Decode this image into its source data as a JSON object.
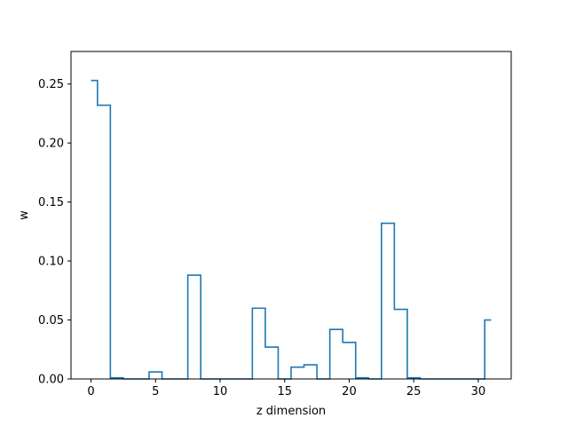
{
  "chart_data": {
    "type": "line",
    "drawstyle": "steps-mid",
    "title": "",
    "xlabel": "z dimension",
    "ylabel": "w",
    "xlim": [
      -1.55,
      32.55
    ],
    "ylim": [
      0,
      0.2776
    ],
    "x_ticks": [
      0,
      5,
      10,
      15,
      20,
      25,
      30
    ],
    "y_ticks": [
      0.0,
      0.05,
      0.1,
      0.15,
      0.2,
      0.25
    ],
    "y_tick_labels": [
      "0.00",
      "0.05",
      "0.10",
      "0.15",
      "0.20",
      "0.25"
    ],
    "grid": false,
    "legend": "none",
    "color": "#1f77b4",
    "series": [
      {
        "x": [
          0,
          1,
          2,
          3,
          4,
          5,
          6,
          7,
          8,
          9,
          10,
          11,
          12,
          13,
          14,
          15,
          16,
          17,
          18,
          19,
          20,
          21,
          22,
          23,
          24,
          25,
          26,
          27,
          28,
          29,
          30,
          31
        ],
        "values": [
          0.253,
          0.232,
          0.001,
          0.0,
          0.0,
          0.006,
          0.0,
          0.0,
          0.088,
          0.0,
          0.0,
          0.0,
          0.0,
          0.06,
          0.027,
          0.0,
          0.01,
          0.012,
          0.0,
          0.042,
          0.031,
          0.001,
          0.0,
          0.132,
          0.059,
          0.001,
          0.0,
          0.0,
          0.0,
          0.0,
          0.0,
          0.05
        ]
      }
    ]
  }
}
